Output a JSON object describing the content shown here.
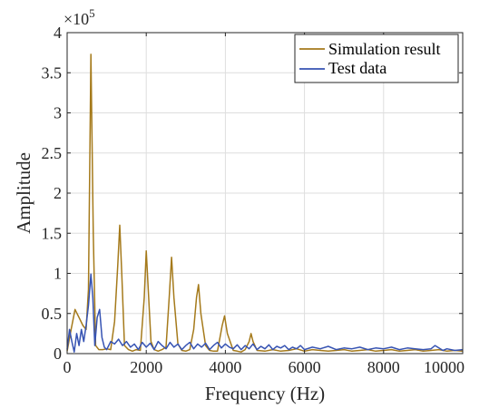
{
  "chart_data": {
    "type": "line",
    "xlabel": "Frequency (Hz)",
    "ylabel": "Amplitude",
    "xlim": [
      0,
      10000
    ],
    "ylim": [
      0,
      4
    ],
    "y_multiplier_label": {
      "base": "×10",
      "exponent": "5"
    },
    "xticks": [
      0,
      2000,
      4000,
      6000,
      8000,
      10000
    ],
    "xtick_labels": [
      "0",
      "2000",
      "4000",
      "6000",
      "8000",
      "10000"
    ],
    "yticks": [
      0,
      0.5,
      1,
      1.5,
      2,
      2.5,
      3,
      3.5,
      4
    ],
    "ytick_labels": [
      "0",
      "0.5",
      "1",
      "1.5",
      "2",
      "2.5",
      "3",
      "3.5",
      "4"
    ],
    "grid": true,
    "legend_position": "top-right",
    "series": [
      {
        "name": "Simulation result",
        "color": "#a57a1b",
        "x": [
          0,
          100,
          200,
          300,
          400,
          480,
          540,
          600,
          660,
          720,
          800,
          900,
          1000,
          1100,
          1200,
          1280,
          1330,
          1380,
          1450,
          1550,
          1650,
          1750,
          1850,
          1950,
          2000,
          2050,
          2120,
          2200,
          2300,
          2400,
          2500,
          2580,
          2640,
          2700,
          2800,
          2900,
          3000,
          3100,
          3200,
          3270,
          3320,
          3380,
          3500,
          3600,
          3700,
          3800,
          3920,
          3980,
          4050,
          4200,
          4300,
          4400,
          4500,
          4600,
          4650,
          4700,
          4800,
          5000,
          5200,
          5400,
          5600,
          5800,
          6000,
          6200,
          6400,
          6600,
          6800,
          7000,
          7200,
          7400,
          7600,
          7800,
          8000,
          8200,
          8400,
          8600,
          8800,
          9000,
          9200,
          9400,
          9600,
          9800,
          10000
        ],
        "values": [
          0.03,
          0.3,
          0.55,
          0.45,
          0.35,
          0.3,
          0.8,
          3.73,
          1.5,
          0.1,
          0.05,
          0.05,
          0.06,
          0.05,
          0.4,
          1.1,
          1.6,
          1.0,
          0.1,
          0.05,
          0.03,
          0.05,
          0.04,
          0.7,
          1.28,
          0.8,
          0.15,
          0.05,
          0.03,
          0.05,
          0.08,
          0.7,
          1.2,
          0.7,
          0.12,
          0.04,
          0.03,
          0.05,
          0.3,
          0.7,
          0.86,
          0.5,
          0.1,
          0.04,
          0.03,
          0.03,
          0.35,
          0.47,
          0.25,
          0.04,
          0.03,
          0.02,
          0.05,
          0.15,
          0.25,
          0.15,
          0.04,
          0.03,
          0.05,
          0.03,
          0.04,
          0.06,
          0.03,
          0.05,
          0.04,
          0.03,
          0.04,
          0.05,
          0.03,
          0.04,
          0.05,
          0.03,
          0.04,
          0.05,
          0.03,
          0.04,
          0.05,
          0.03,
          0.04,
          0.05,
          0.03,
          0.04,
          0.03
        ]
      },
      {
        "name": "Test data",
        "color": "#3653b3",
        "x": [
          0,
          60,
          120,
          180,
          240,
          300,
          360,
          420,
          480,
          540,
          600,
          650,
          700,
          760,
          820,
          880,
          940,
          1000,
          1100,
          1200,
          1300,
          1400,
          1500,
          1600,
          1700,
          1800,
          1900,
          2000,
          2100,
          2200,
          2300,
          2400,
          2500,
          2600,
          2700,
          2800,
          2900,
          3000,
          3100,
          3200,
          3300,
          3400,
          3500,
          3600,
          3700,
          3800,
          3900,
          4000,
          4100,
          4200,
          4300,
          4400,
          4500,
          4600,
          4700,
          4800,
          4900,
          5000,
          5100,
          5200,
          5300,
          5400,
          5500,
          5600,
          5700,
          5800,
          5900,
          6000,
          6200,
          6400,
          6600,
          6800,
          7000,
          7200,
          7400,
          7600,
          7800,
          8000,
          8200,
          8400,
          8600,
          8800,
          9000,
          9200,
          9300,
          9400,
          9500,
          9600,
          9800,
          10000
        ],
        "values": [
          0.05,
          0.3,
          0.15,
          0.02,
          0.25,
          0.1,
          0.3,
          0.15,
          0.35,
          0.6,
          0.99,
          0.7,
          0.1,
          0.45,
          0.55,
          0.2,
          0.08,
          0.05,
          0.15,
          0.12,
          0.18,
          0.1,
          0.15,
          0.08,
          0.12,
          0.05,
          0.14,
          0.08,
          0.13,
          0.05,
          0.15,
          0.1,
          0.06,
          0.14,
          0.08,
          0.12,
          0.05,
          0.1,
          0.14,
          0.06,
          0.12,
          0.08,
          0.13,
          0.05,
          0.1,
          0.14,
          0.07,
          0.12,
          0.08,
          0.06,
          0.11,
          0.05,
          0.1,
          0.06,
          0.12,
          0.05,
          0.09,
          0.06,
          0.11,
          0.05,
          0.09,
          0.07,
          0.1,
          0.05,
          0.08,
          0.06,
          0.1,
          0.05,
          0.08,
          0.06,
          0.09,
          0.05,
          0.07,
          0.06,
          0.08,
          0.05,
          0.07,
          0.06,
          0.08,
          0.05,
          0.07,
          0.06,
          0.05,
          0.06,
          0.1,
          0.07,
          0.04,
          0.06,
          0.04,
          0.05
        ]
      }
    ]
  }
}
